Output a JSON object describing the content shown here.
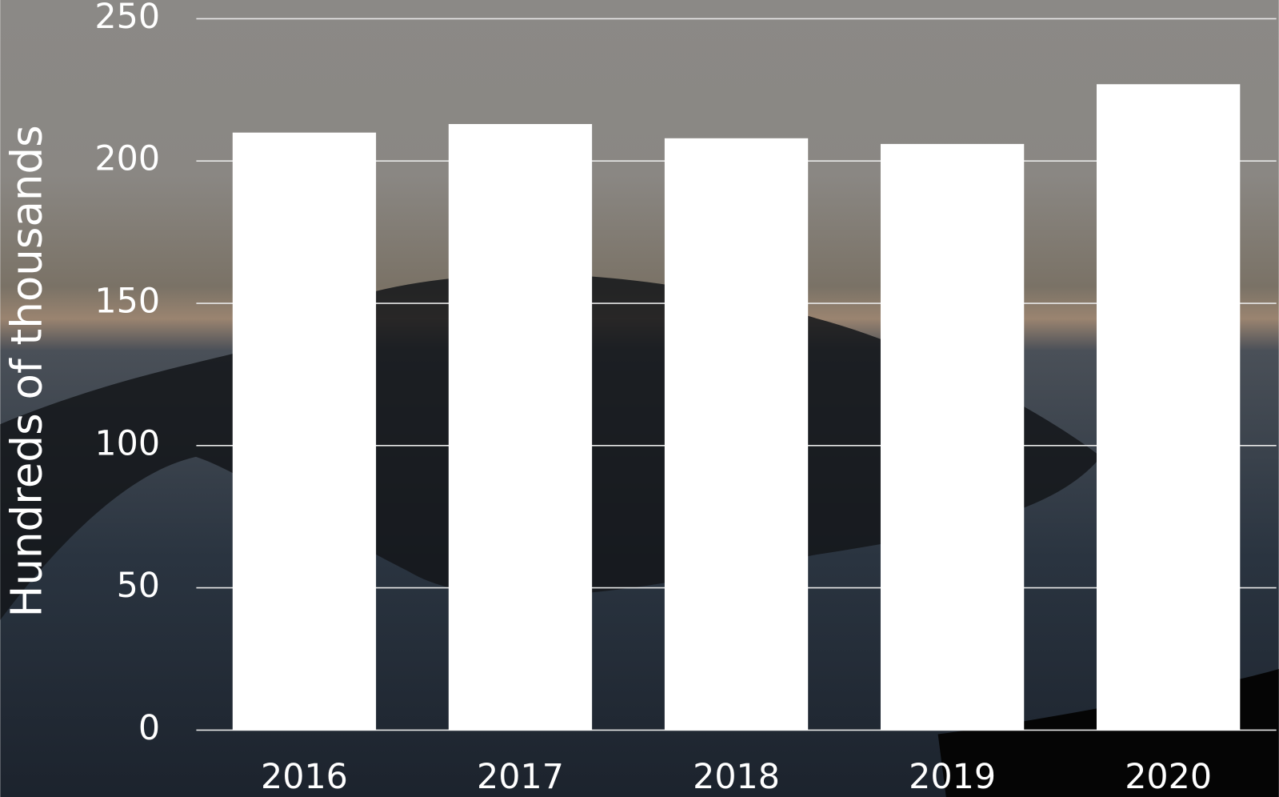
{
  "chart_data": {
    "type": "bar",
    "y_label": "Hundreds of thousands",
    "categories": [
      "2016",
      "2017",
      "2018",
      "2019",
      "2020"
    ],
    "values": [
      210,
      213,
      208,
      206,
      227
    ],
    "color": "#ffffff",
    "ylim": [
      0,
      250
    ],
    "yticks": [
      0,
      50,
      100,
      150,
      200,
      250
    ],
    "grid": true
  }
}
